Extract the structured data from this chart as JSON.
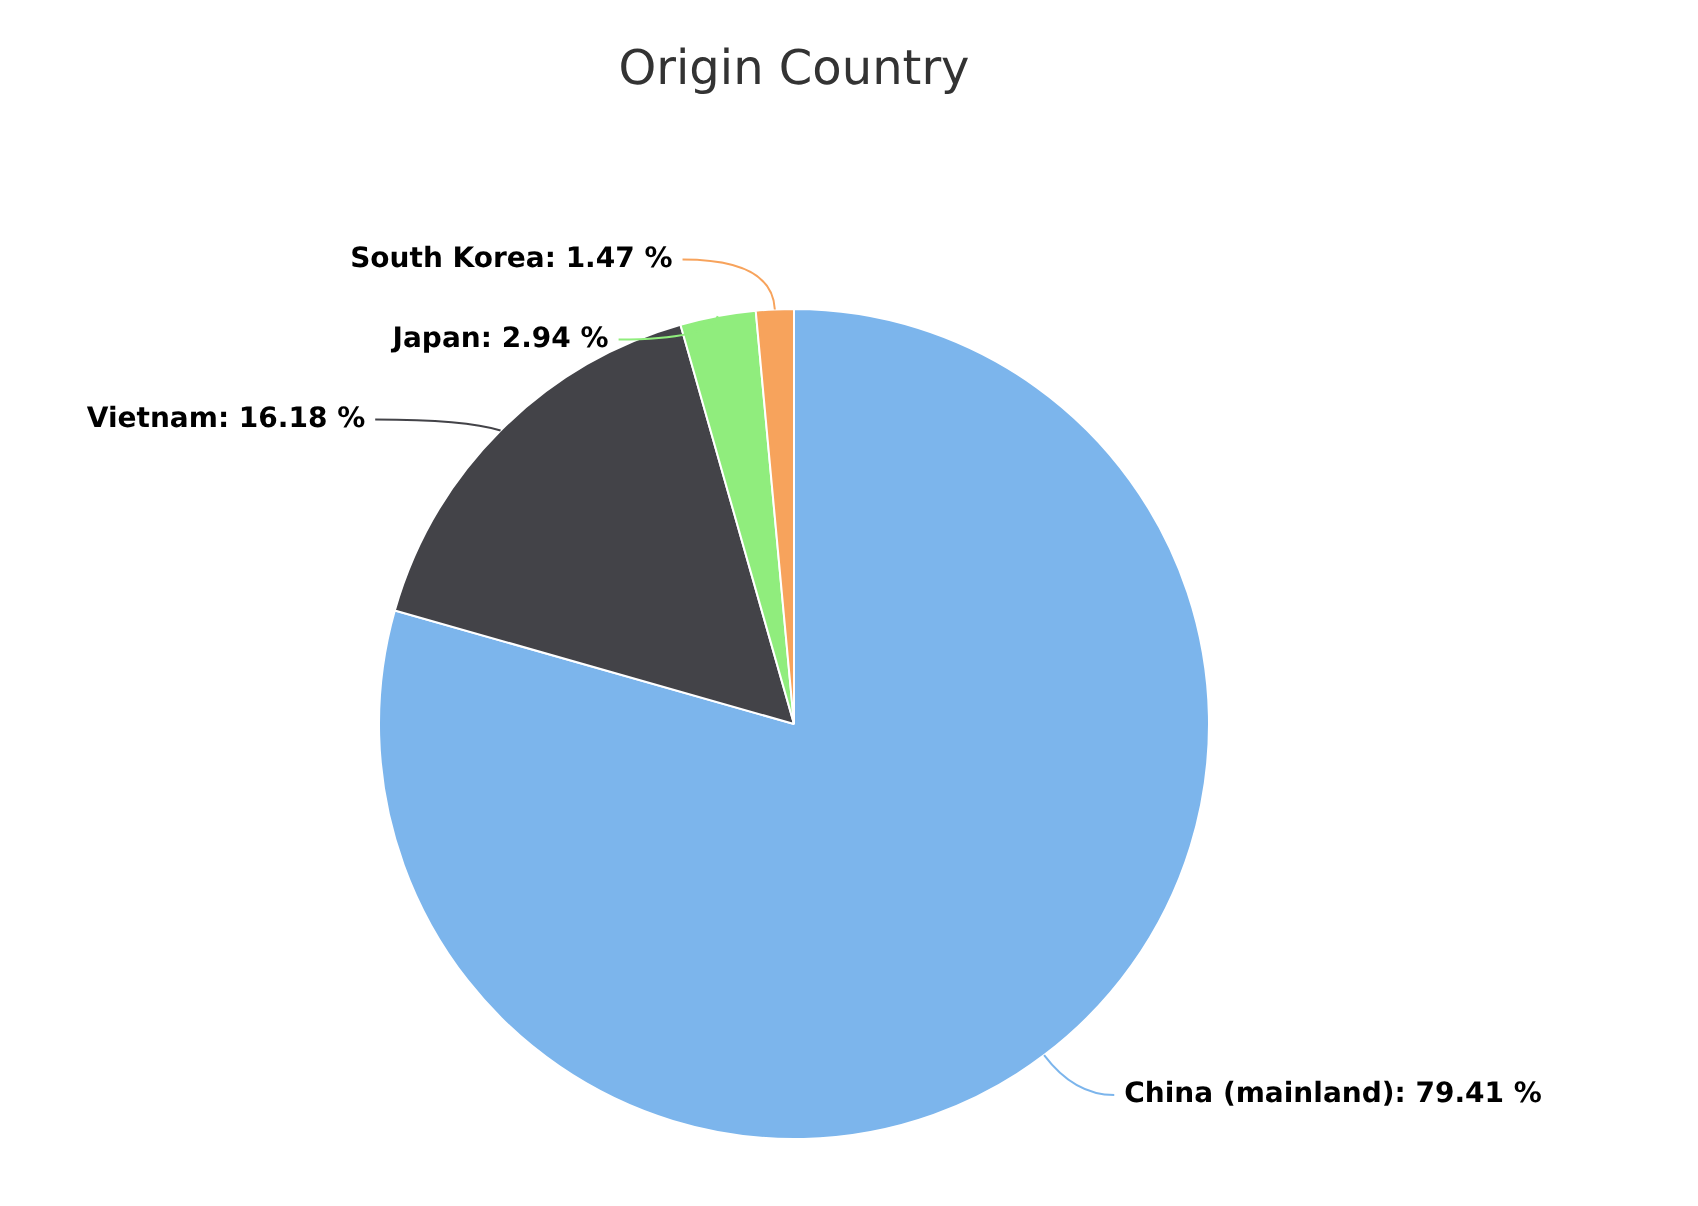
{
  "chart_data": {
    "type": "pie",
    "title": "Origin Country",
    "categories": [
      "China (mainland)",
      "Vietnam",
      "Japan",
      "South Korea"
    ],
    "values": [
      79.41,
      16.18,
      2.94,
      1.47
    ],
    "colors": [
      "#7cb5ec",
      "#434348",
      "#90ed7d",
      "#f7a35c"
    ],
    "value_labels": [
      "79.41 %",
      "16.18 %",
      "2.94 %",
      "1.47 %"
    ]
  }
}
